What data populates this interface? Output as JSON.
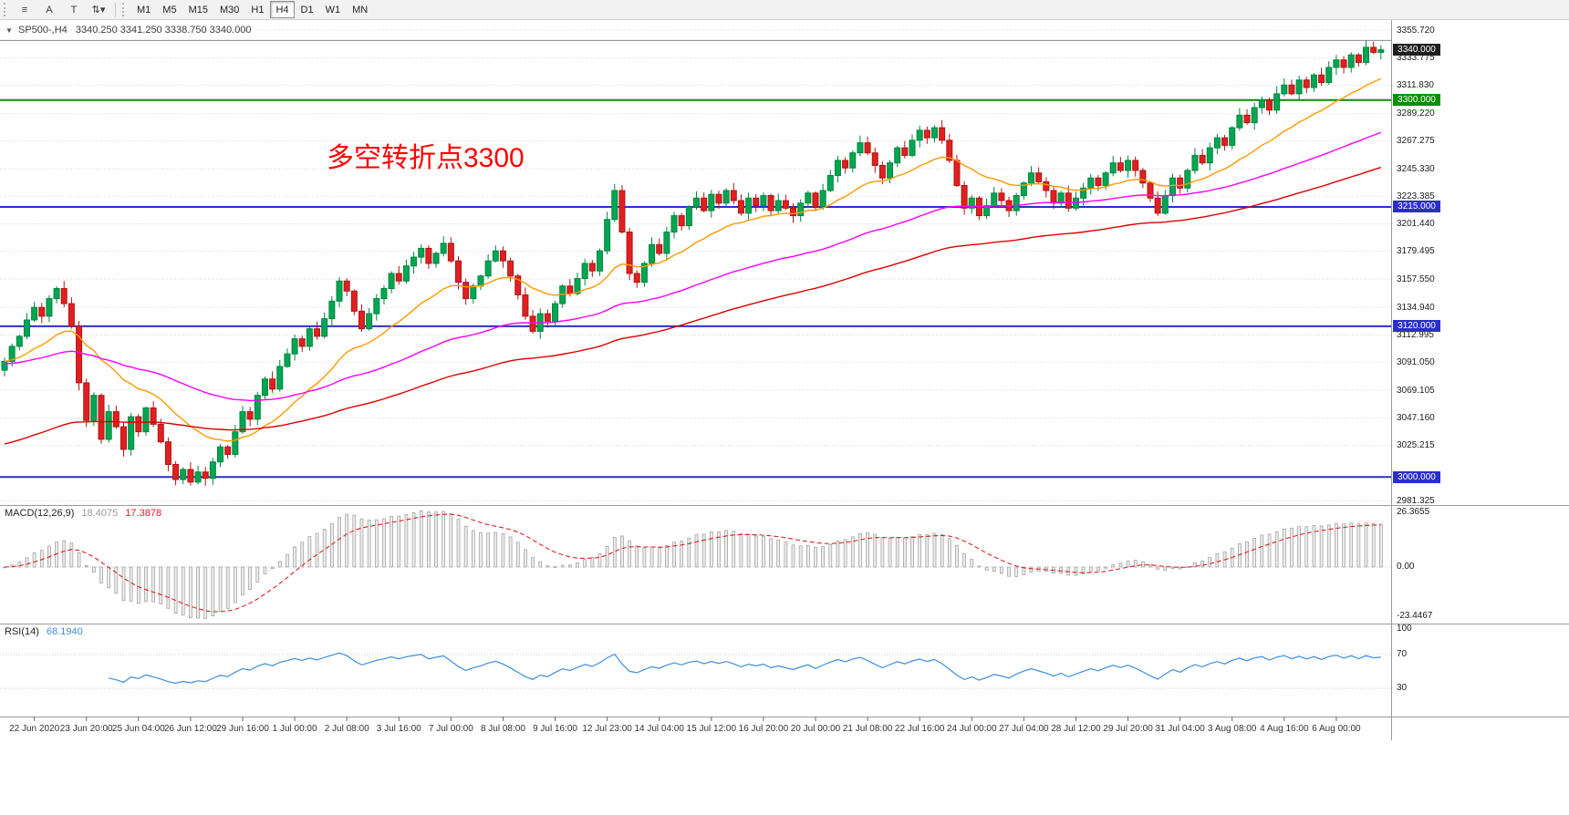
{
  "toolbar": {
    "tools": [
      {
        "name": "chart-mode-icon",
        "glyph": "≡"
      },
      {
        "name": "text-label-tool-icon",
        "glyph": "A"
      },
      {
        "name": "text-tool-icon",
        "glyph": "T"
      },
      {
        "name": "arrow-tools-dropdown-icon",
        "glyph": "⇅▾"
      }
    ],
    "timeframes": [
      "M1",
      "M5",
      "M15",
      "M30",
      "H1",
      "H4",
      "D1",
      "W1",
      "MN"
    ],
    "active_timeframe": "H4"
  },
  "chart": {
    "symbol_dropdown_icon": "▼",
    "title_symbol": "SP500-,H4",
    "title_ohlc": "3340.250 3341.250 3338.750 3340.000",
    "annotation": {
      "text": "多空转折点3300",
      "color": "#FF0000"
    },
    "hlines": [
      {
        "price": 3347.5,
        "color": "#8a8a8a",
        "width": 1
      },
      {
        "price": 3300,
        "color": "#089000",
        "width": 2
      },
      {
        "price": 3215,
        "color": "#2b2fc9",
        "width": 2
      },
      {
        "price": 3120,
        "color": "#2b2fc9",
        "width": 2
      },
      {
        "price": 3000,
        "color": "#2b2fc9",
        "width": 2
      }
    ],
    "price_tags": [
      {
        "text": "3340.000",
        "value": 3340.0,
        "bg": "#1f1f1f"
      },
      {
        "text": "3300.000",
        "value": 3300.0,
        "bg": "#089000"
      },
      {
        "text": "3215.000",
        "value": 3215.0,
        "bg": "#2b2fc9"
      },
      {
        "text": "3120.000",
        "value": 3120.0,
        "bg": "#2b2fc9"
      },
      {
        "text": "3000.000",
        "value": 3000.0,
        "bg": "#2b2fc9"
      }
    ],
    "scale_labels": [
      {
        "text": "3355.720",
        "value": 3355.72
      },
      {
        "text": "3333.775",
        "value": 3333.775
      },
      {
        "text": "3311.830",
        "value": 3311.83
      },
      {
        "text": "3289.220",
        "value": 3289.22
      },
      {
        "text": "3267.275",
        "value": 3267.275
      },
      {
        "text": "3245.330",
        "value": 3245.33
      },
      {
        "text": "3223.385",
        "value": 3223.385
      },
      {
        "text": "3201.440",
        "value": 3201.44
      },
      {
        "text": "3179.495",
        "value": 3179.495
      },
      {
        "text": "3157.550",
        "value": 3157.55
      },
      {
        "text": "3134.940",
        "value": 3134.94
      },
      {
        "text": "3112.995",
        "value": 3112.995
      },
      {
        "text": "3091.050",
        "value": 3091.05
      },
      {
        "text": "3069.105",
        "value": 3069.105
      },
      {
        "text": "3047.160",
        "value": 3047.16
      },
      {
        "text": "3025.215",
        "value": 3025.215
      },
      {
        "text": "2981.325",
        "value": 2981.325
      }
    ]
  },
  "chart_data": {
    "type": "candlestick",
    "symbol": "SP500-",
    "timeframe": "H4",
    "y_axis": {
      "top": 3355.72,
      "bottom": 2981.325
    },
    "x_labels": [
      "22 Jun 2020",
      "23 Jun 20:00",
      "25 Jun 04:00",
      "26 Jun 12:00",
      "29 Jun 16:00",
      "1 Jul 00:00",
      "2 Jul 08:00",
      "3 Jul 16:00",
      "7 Jul 00:00",
      "8 Jul 08:00",
      "9 Jul 16:00",
      "12 Jul 23:00",
      "14 Jul 04:00",
      "15 Jul 12:00",
      "16 Jul 20:00",
      "20 Jul 00:00",
      "21 Jul 08:00",
      "22 Jul 16:00",
      "24 Jul 00:00",
      "27 Jul 04:00",
      "28 Jul 12:00",
      "29 Jul 20:00",
      "31 Jul 04:00",
      "3 Aug 08:00",
      "4 Aug 16:00",
      "6 Aug 00:00"
    ],
    "first_open": 3085,
    "closes": [
      3092,
      3104,
      3112,
      3125,
      3135,
      3128,
      3142,
      3150,
      3138,
      3120,
      3075,
      3045,
      3065,
      3030,
      3052,
      3040,
      3022,
      3048,
      3036,
      3055,
      3042,
      3028,
      3010,
      2998,
      3006,
      2996,
      3004,
      2999,
      3012,
      3024,
      3018,
      3036,
      3052,
      3046,
      3065,
      3078,
      3070,
      3088,
      3098,
      3110,
      3104,
      3118,
      3112,
      3126,
      3140,
      3156,
      3148,
      3132,
      3118,
      3130,
      3142,
      3150,
      3162,
      3156,
      3168,
      3175,
      3182,
      3170,
      3178,
      3186,
      3172,
      3155,
      3142,
      3152,
      3160,
      3172,
      3180,
      3172,
      3160,
      3145,
      3128,
      3116,
      3130,
      3124,
      3138,
      3152,
      3146,
      3158,
      3170,
      3164,
      3180,
      3205,
      3228,
      3195,
      3162,
      3155,
      3170,
      3185,
      3178,
      3195,
      3208,
      3200,
      3215,
      3222,
      3212,
      3225,
      3218,
      3228,
      3220,
      3210,
      3222,
      3216,
      3224,
      3212,
      3220,
      3214,
      3208,
      3218,
      3226,
      3215,
      3228,
      3240,
      3252,
      3246,
      3258,
      3266,
      3258,
      3248,
      3238,
      3250,
      3262,
      3256,
      3268,
      3276,
      3270,
      3278,
      3268,
      3252,
      3232,
      3214,
      3222,
      3208,
      3216,
      3226,
      3220,
      3212,
      3224,
      3234,
      3242,
      3235,
      3228,
      3218,
      3226,
      3214,
      3222,
      3230,
      3238,
      3232,
      3242,
      3250,
      3244,
      3252,
      3244,
      3234,
      3222,
      3210,
      3224,
      3238,
      3230,
      3244,
      3256,
      3250,
      3262,
      3270,
      3264,
      3278,
      3288,
      3282,
      3294,
      3300,
      3292,
      3305,
      3312,
      3305,
      3316,
      3310,
      3320,
      3314,
      3326,
      3332,
      3326,
      3336,
      3330,
      3342,
      3338,
      3340
    ],
    "up_color": "#00A651",
    "up_border": "#008540",
    "down_color": "#E02020",
    "down_border": "#B01515",
    "moving_averages": [
      {
        "name": "ma-fast",
        "color": "#FF9900",
        "period": 18,
        "seed": 3092
      },
      {
        "name": "ma-medium",
        "color": "#FF00FF",
        "period": 60,
        "seed": 3090
      },
      {
        "name": "ma-slow",
        "color": "#DD0000",
        "period": 100,
        "seed": 3025
      }
    ],
    "macd": {
      "label": "MACD(12,26,9)",
      "main_value": "18.4075",
      "signal_value": "17.3878",
      "fast": 12,
      "slow": 26,
      "signal": 9,
      "axis_labels": [
        "26.3655",
        "0.00",
        "-23.4467"
      ],
      "histogram_color": "#ececec",
      "histogram_border": "#9a9a9a",
      "signal_color": "#e02020"
    },
    "rsi": {
      "label": "RSI(14)",
      "value_text": "68.1940",
      "period": 14,
      "axis_labels": [
        "100",
        "70",
        "30"
      ],
      "levels": [
        70,
        30
      ],
      "line_color": "#3e8ede"
    }
  }
}
